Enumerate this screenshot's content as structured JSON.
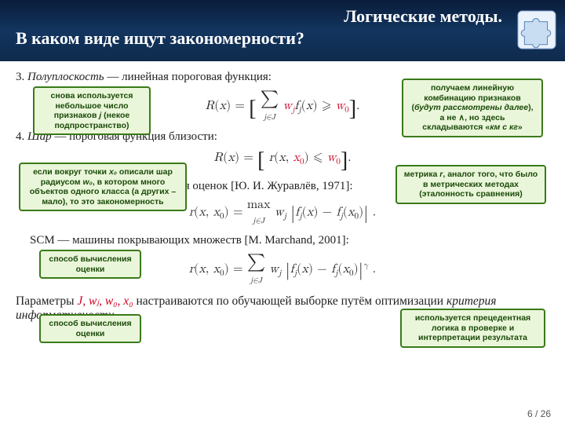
{
  "header": {
    "title1": "Логические методы.",
    "title2": "В каком виде ищут закономерности?"
  },
  "items": {
    "i3": {
      "num": "3.",
      "name": "Полуплоскость",
      "desc": "— линейная пороговая функция:"
    },
    "i4": {
      "num": "4.",
      "name": "Шар",
      "desc": "— пороговая функция близости:"
    }
  },
  "formulas": {
    "f3": {
      "pre": "R(x) = [ ∑",
      "sub": "j∈J",
      "mid": " w",
      "subj": "j",
      "f": " f",
      "subj2": "j",
      "post": "(x) ⩾ ",
      "thr": "w",
      "thr0": "0",
      "end": " ]."
    },
    "f4": {
      "pre": "R(x) = [ r(x, ",
      "x0": "x",
      "x0s": "0",
      "mid": ") ⩽ ",
      "thr": "w",
      "thr0": "0",
      "end": " ]."
    },
    "abo_label": "АВО — алгоритмы вычисления оценок [Ю. И. Журавлёв, 1971]:",
    "abo": "r(x, x₀) = max_{j∈J} wⱼ |fⱼ(x) − fⱼ(x₀)| .",
    "scm_label": "SCM — машины покрывающих множеств [M. Marchand, 2001]:",
    "scm": "r(x, x₀) = ∑_{j∈J} wⱼ |fⱼ(x) − fⱼ(x₀)|^γ ."
  },
  "callouts": {
    "c1": "снова используется небольшое число признаков <i>j</i> (некое подпространство)",
    "c2": "получаем линейную комбинацию признаков (<i>будут рассмотрены далее</i>), а не <b>∧</b>, но здесь складываются «<i>км с кг</i>»",
    "c3": "если вокруг точки <i>x₀</i> описали шар радиусом <i>w₀</i>, в котором много объектов одного класса (а других – мало), то это закономерность",
    "c4": "метрика <i>r</i>, аналог того, что было в метрических методах (эталонность сравнения)",
    "c5": "способ вычисления оценки",
    "c6": "способ вычисления оценки",
    "c7": "используется прецедентная логика в проверке и интерпретации результата"
  },
  "params": {
    "pre": "Параметры ",
    "list": "J, wⱼ, w₀, x₀",
    "mid": " настраиваются по обучающей выборке путём оптимизации ",
    "crit": "критерия информативности",
    "end": "."
  },
  "page": {
    "cur": "6",
    "sep": " / ",
    "total": "26"
  },
  "colors": {
    "header_bg_top": "#0a1c3a",
    "header_bg_mid": "#12355f",
    "callout_bg": "#eaf6d9",
    "callout_border": "#3a7a1a",
    "red": "#cc0020"
  }
}
